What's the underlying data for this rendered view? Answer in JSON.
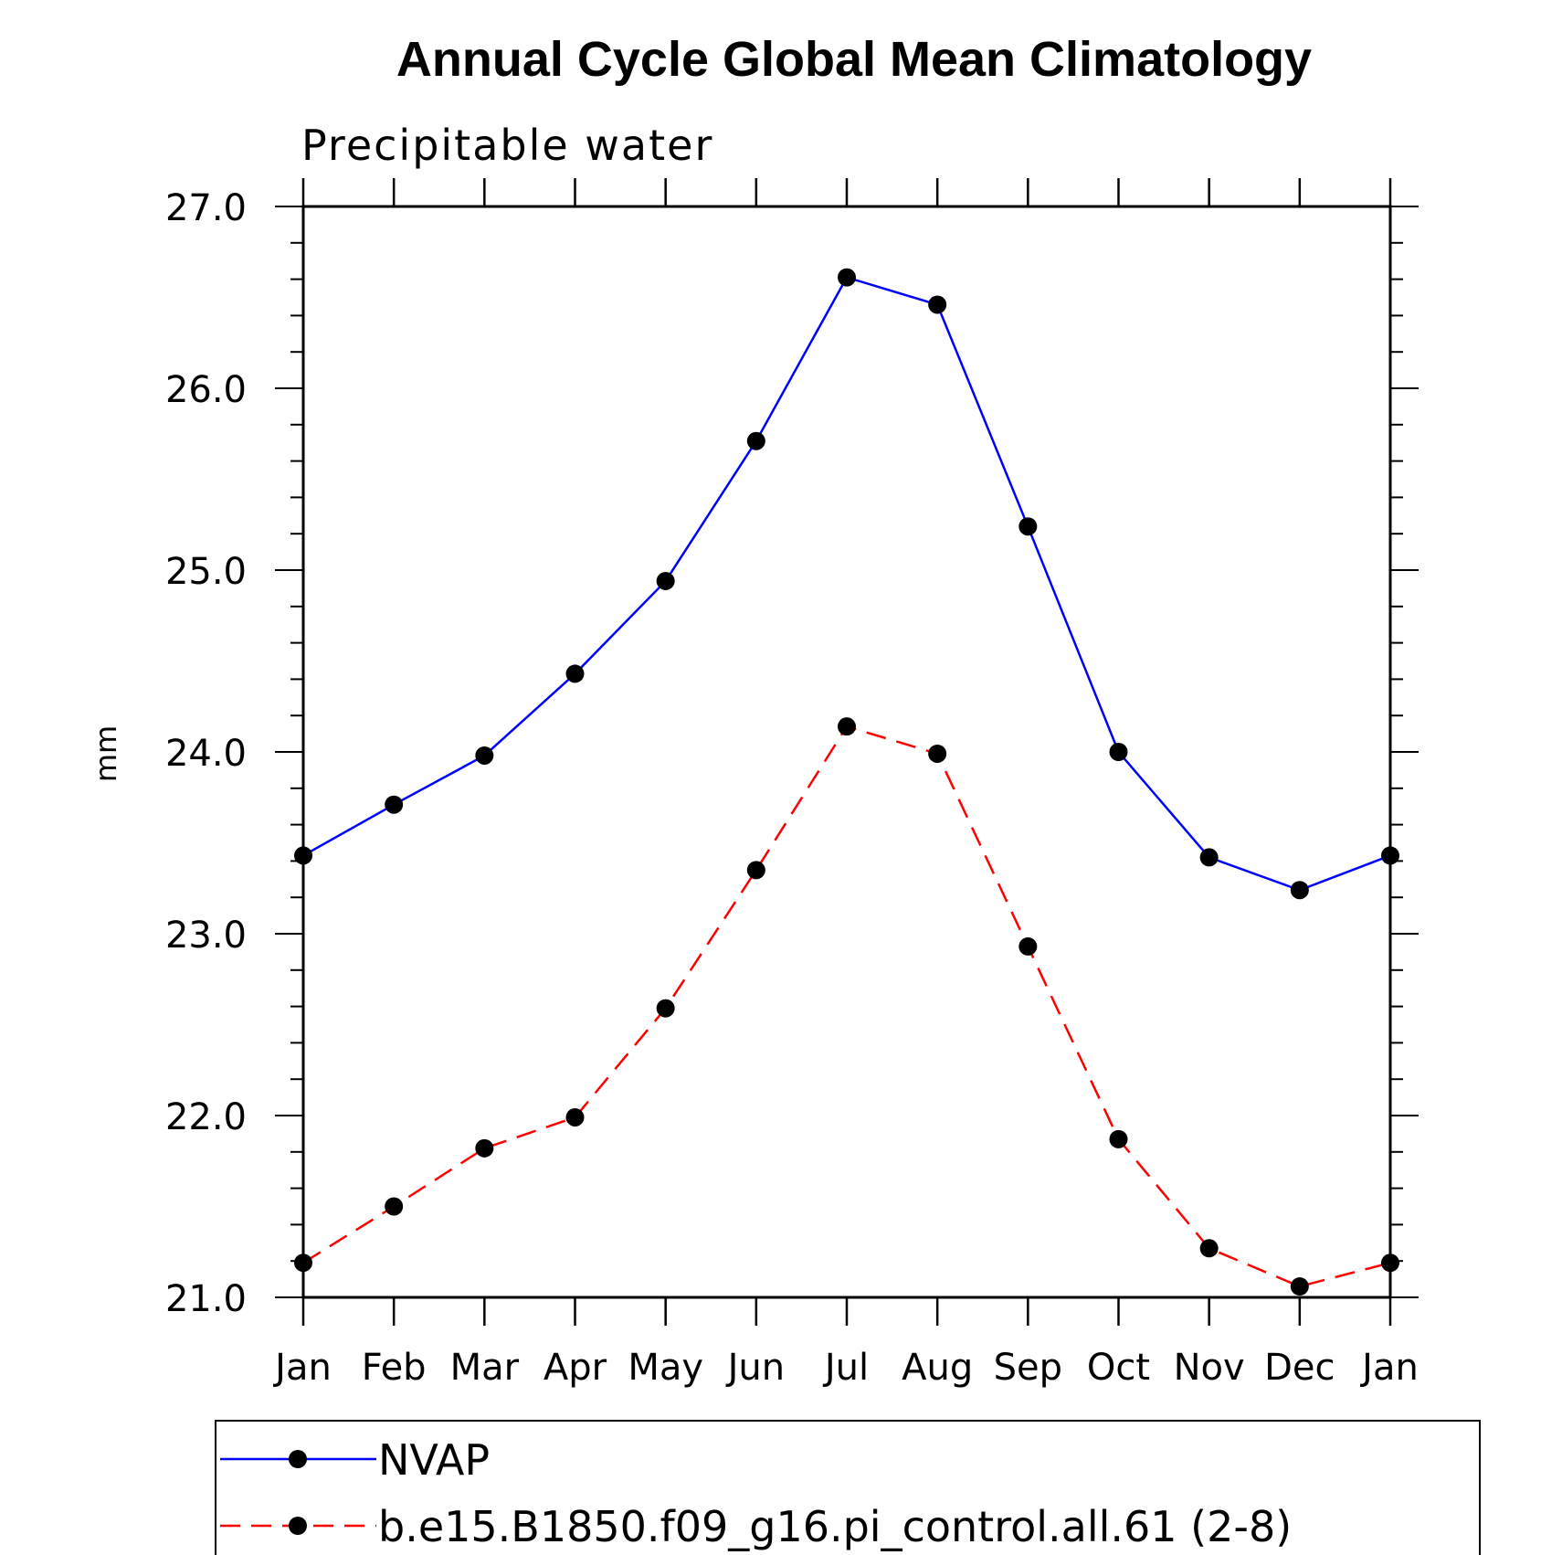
{
  "chart_data": {
    "type": "line",
    "title": "Annual Cycle Global Mean Climatology",
    "subtitle": "Precipitable water",
    "ylabel": "mm",
    "xlabel": "",
    "ylim": [
      21.0,
      27.0
    ],
    "yticks": [
      "21.0",
      "22.0",
      "23.0",
      "24.0",
      "25.0",
      "26.0",
      "27.0"
    ],
    "categories": [
      "Jan",
      "Feb",
      "Mar",
      "Apr",
      "May",
      "Jun",
      "Jul",
      "Aug",
      "Sep",
      "Oct",
      "Nov",
      "Dec",
      "Jan"
    ],
    "series": [
      {
        "name": "NVAP",
        "color": "#0000ff",
        "style": "solid",
        "values": [
          23.43,
          23.71,
          23.98,
          24.43,
          24.94,
          25.71,
          26.61,
          26.46,
          25.24,
          24.0,
          23.42,
          23.24,
          23.43
        ]
      },
      {
        "name": "b.e15.B1850.f09_g16.pi_control.all.61 (2-8)",
        "color": "#ff0000",
        "style": "dashed",
        "values": [
          21.19,
          21.5,
          21.82,
          21.99,
          22.59,
          23.35,
          24.14,
          23.99,
          22.93,
          21.87,
          21.27,
          21.06,
          21.19
        ]
      }
    ],
    "legend": "bottom",
    "grid": false
  }
}
